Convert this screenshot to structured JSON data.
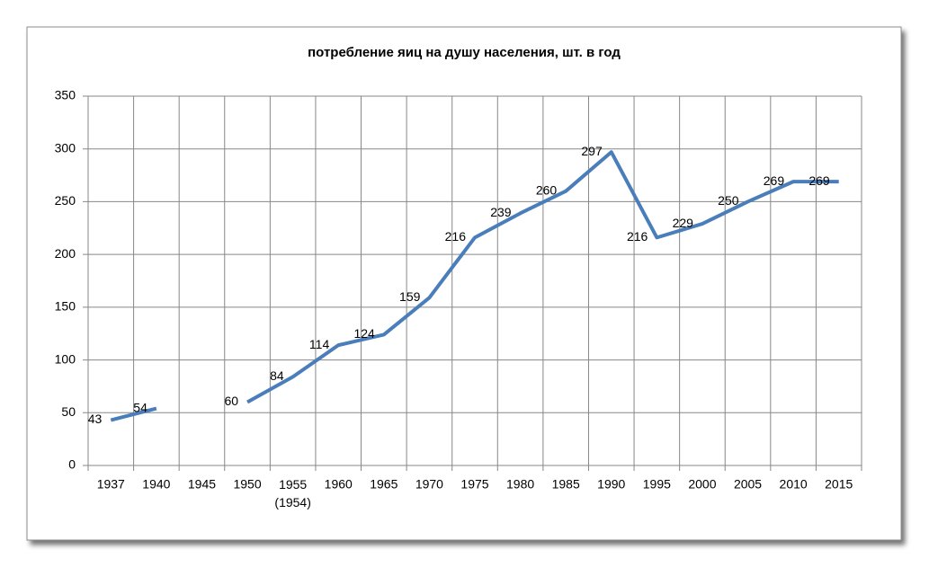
{
  "chart_data": {
    "type": "line",
    "title": "потребление яиц на душу населения, шт. в год",
    "categories": [
      "1937",
      "1940",
      "1945",
      "1950",
      "1955\n(1954)",
      "1960",
      "1965",
      "1970",
      "1975",
      "1980",
      "1985",
      "1990",
      "1995",
      "2000",
      "2005",
      "2010",
      "2015"
    ],
    "values": [
      43,
      54,
      null,
      60,
      84,
      114,
      124,
      159,
      216,
      239,
      260,
      297,
      216,
      229,
      250,
      269,
      269
    ],
    "color": "#4a7ebb",
    "ylim": [
      0,
      350
    ],
    "yticks": [
      0,
      50,
      100,
      150,
      200,
      250,
      300,
      350
    ],
    "grid": true
  }
}
